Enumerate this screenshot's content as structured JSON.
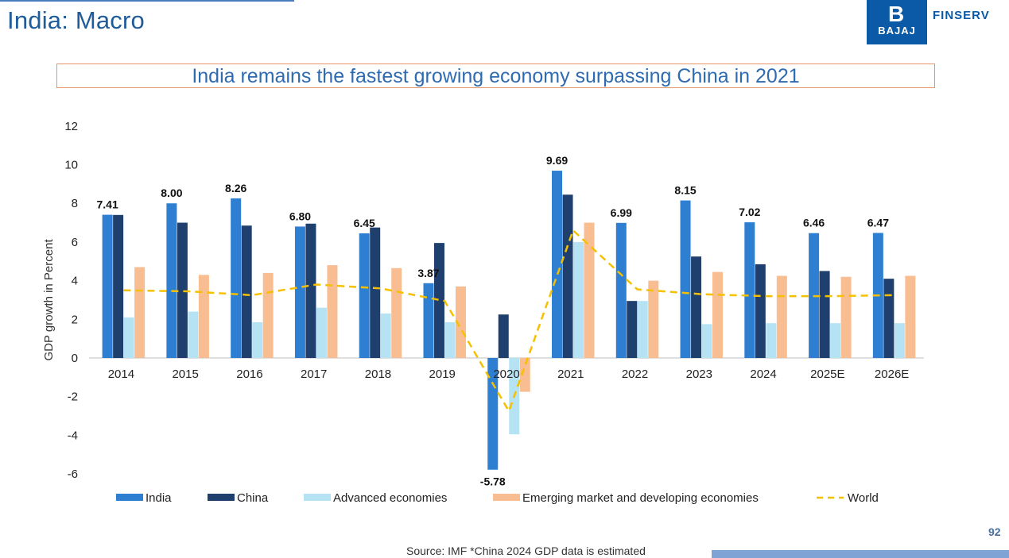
{
  "page": {
    "title": "India: Macro",
    "headline": "India remains the fastest growing economy surpassing China in 2021",
    "page_number": "92",
    "source": "Source: IMF   *China 2024 GDP data is estimated"
  },
  "logo": {
    "mark": "B",
    "brand": "BAJAJ",
    "sub": "FINSERV"
  },
  "colors": {
    "india": "#2e7fd2",
    "china": "#1f3f6e",
    "advanced": "#b6e3f4",
    "emerging": "#f9bd92",
    "world": "#f5c000"
  },
  "chart_data": {
    "type": "bar",
    "ylabel": "GDP growth in  Percent",
    "ylim": [
      -6,
      12
    ],
    "yticks": [
      12,
      10,
      8,
      6,
      4,
      2,
      0,
      -2,
      -4,
      -6
    ],
    "categories": [
      "2014",
      "2015",
      "2016",
      "2017",
      "2018",
      "2019",
      "2020",
      "2021",
      "2022",
      "2023",
      "2024",
      "2025E",
      "2026E"
    ],
    "series": [
      {
        "name": "India",
        "key": "india",
        "values": [
          7.41,
          8.0,
          8.26,
          6.8,
          6.45,
          3.87,
          -5.78,
          9.69,
          6.99,
          8.15,
          7.02,
          6.46,
          6.47
        ]
      },
      {
        "name": "China",
        "key": "china",
        "values": [
          7.4,
          7.0,
          6.85,
          6.95,
          6.75,
          5.95,
          2.25,
          8.45,
          2.95,
          5.25,
          4.85,
          4.5,
          4.1
        ]
      },
      {
        "name": "Advanced economies",
        "key": "advanced",
        "values": [
          2.1,
          2.4,
          1.85,
          2.6,
          2.3,
          1.85,
          -3.95,
          6.0,
          2.95,
          1.75,
          1.8,
          1.8,
          1.8
        ]
      },
      {
        "name": "Emerging market and developing economies",
        "key": "emerging",
        "values": [
          4.7,
          4.3,
          4.4,
          4.8,
          4.65,
          3.7,
          -1.75,
          7.0,
          4.0,
          4.45,
          4.25,
          4.2,
          4.25
        ]
      }
    ],
    "line": {
      "name": "World",
      "key": "world",
      "values": [
        3.5,
        3.45,
        3.25,
        3.8,
        3.6,
        2.95,
        -2.75,
        6.6,
        3.55,
        3.3,
        3.2,
        3.2,
        3.25
      ]
    },
    "data_labels": [
      "7.41",
      "8.00",
      "8.26",
      "6.80",
      "6.45",
      "3.87",
      "-5.78",
      "9.69",
      "6.99",
      "8.15",
      "7.02",
      "6.46",
      "6.47"
    ]
  }
}
